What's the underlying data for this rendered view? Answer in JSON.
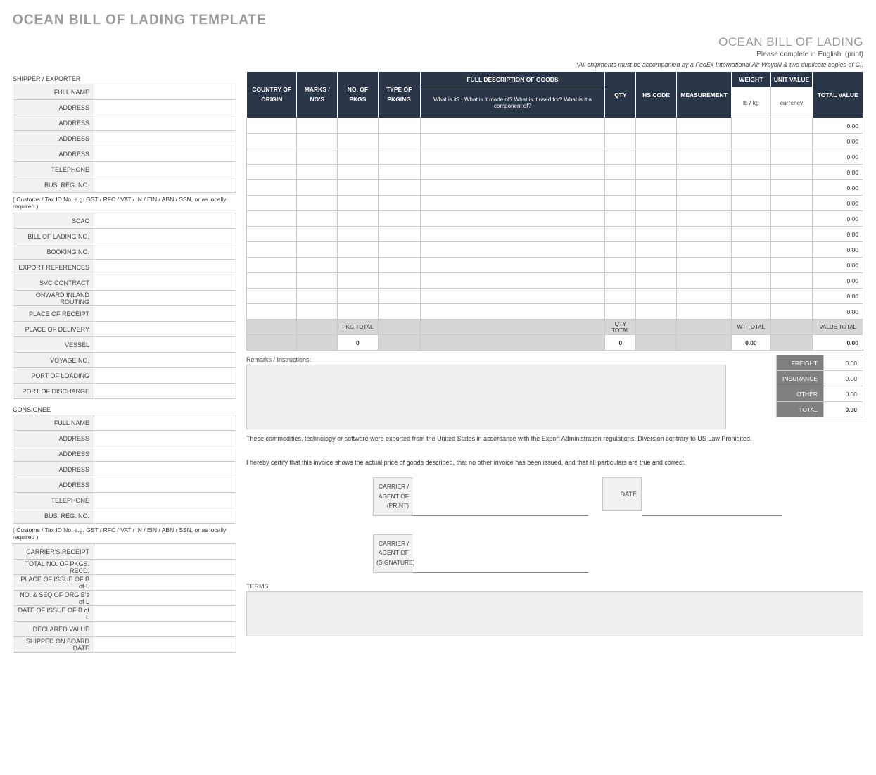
{
  "page_title": "OCEAN BILL OF LADING TEMPLATE",
  "doc_title": "OCEAN BILL OF LADING",
  "subtitle": "Please complete in English. (print)",
  "waybill_note": "*All shipments must be accompanied by a FedEx International Air Waybill & two duplicate copies of CI.",
  "shipper": {
    "heading": "SHIPPER / EXPORTER",
    "fields": [
      "FULL NAME",
      "ADDRESS",
      "ADDRESS",
      "ADDRESS",
      "ADDRESS",
      "TELEPHONE",
      "BUS. REG. NO."
    ],
    "tax_note": "( Customs / Tax ID No. e.g. GST / RFC / VAT / IN / EIN / ABN / SSN, or as locally required )"
  },
  "shipment": {
    "fields": [
      "SCAC",
      "BILL OF LADING NO.",
      "BOOKING NO.",
      "EXPORT REFERENCES",
      "SVC CONTRACT",
      "ONWARD INLAND ROUTING",
      "PLACE OF RECEIPT",
      "PLACE OF DELIVERY",
      "VESSEL",
      "VOYAGE NO.",
      "PORT OF LOADING",
      "PORT OF DISCHARGE"
    ]
  },
  "consignee": {
    "heading": "CONSIGNEE",
    "fields": [
      "FULL NAME",
      "ADDRESS",
      "ADDRESS",
      "ADDRESS",
      "ADDRESS",
      "TELEPHONE",
      "BUS. REG. NO."
    ],
    "tax_note": "( Customs / Tax ID No. e.g. GST / RFC / VAT / IN / EIN / ABN / SSN, or as locally required )"
  },
  "carrier": {
    "fields": [
      "CARRIER'S RECEIPT",
      "TOTAL NO. OF PKGS. RECD.",
      "PLACE OF ISSUE OF B of L",
      "NO. & SEQ OF ORG B's of L",
      "DATE OF ISSUE OF B of L",
      "DECLARED VALUE",
      "SHIPPED ON BOARD DATE"
    ]
  },
  "goods": {
    "headers": {
      "country": "COUNTRY OF ORIGIN",
      "marks": "MARKS / NO'S",
      "no_pkgs": "NO. OF PKGS",
      "type_pkg": "TYPE OF PKGING",
      "desc": "FULL DESCRIPTION OF GOODS",
      "desc_sub": "What is it?  |  What is it made of?  What is it used for?  What is it a component of?",
      "qty": "QTY",
      "hs": "HS CODE",
      "meas": "MEASUREMENT",
      "weight": "WEIGHT",
      "weight_sub": "lb / kg",
      "unit": "UNIT VALUE",
      "unit_sub": "currency",
      "total": "TOTAL VALUE"
    },
    "col_widths": {
      "country": 62,
      "marks": 50,
      "no_pkgs": 50,
      "type_pkg": 52,
      "desc": 228,
      "qty": 38,
      "hs": 50,
      "meas": 68,
      "weight": 48,
      "unit": 52,
      "total": 62
    },
    "row_count": 13,
    "row_total_value": "0.00",
    "totals": {
      "pkg_label": "PKG TOTAL",
      "pkg_val": "0",
      "qty_label": "QTY TOTAL",
      "qty_val": "0",
      "wt_label": "WT TOTAL",
      "wt_val": "0.00",
      "value_label": "VALUE TOTAL",
      "value_val": "0.00"
    }
  },
  "remarks_label": "Remarks / Instructions:",
  "charges": {
    "rows": [
      {
        "label": "FREIGHT",
        "value": "0.00"
      },
      {
        "label": "INSURANCE",
        "value": "0.00"
      },
      {
        "label": "OTHER",
        "value": "0.00"
      },
      {
        "label": "TOTAL",
        "value": "0.00",
        "bold": true
      }
    ]
  },
  "export_text": "These commodities, technology or software were exported from the United States in accordance with the Export Administration regulations.  Diversion contrary to US Law Prohibited.",
  "certify_text": "I hereby certify that this invoice shows the actual price of goods described, that no other invoice has been issued, and that all particulars are true and correct.",
  "sig": {
    "print": "CARRIER / AGENT OF (PRINT)",
    "signature": "CARRIER / AGENT OF (SIGNATURE)",
    "date": "DATE"
  },
  "terms_label": "TERMS",
  "colors": {
    "header_bg": "#2a3648",
    "grey_bg": "#f1f1f1",
    "totals_bg": "#d6d6d6",
    "charges_bg": "#808080",
    "border": "#c9c9c9",
    "title_grey": "#9a9a9a"
  }
}
